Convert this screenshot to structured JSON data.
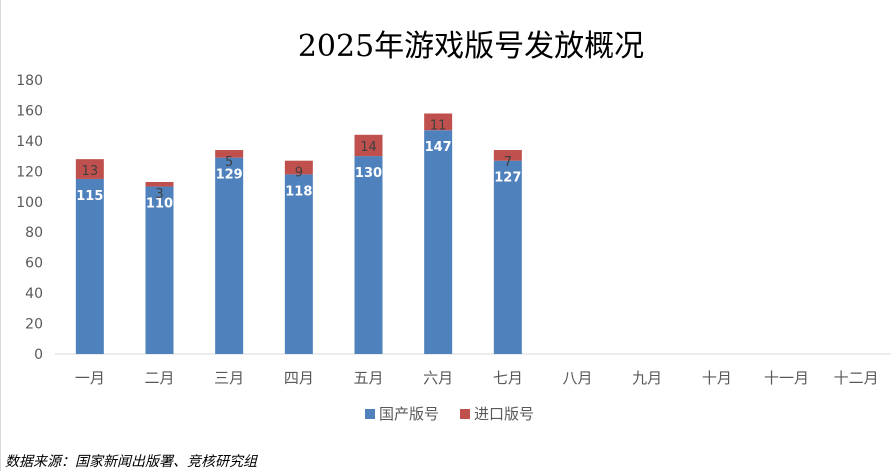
{
  "chart_data": {
    "type": "bar",
    "stacked": true,
    "title": "2025年游戏版号发放概况",
    "categories": [
      "一月",
      "二月",
      "三月",
      "四月",
      "五月",
      "六月",
      "七月",
      "八月",
      "九月",
      "十月",
      "十一月",
      "十二月"
    ],
    "series": [
      {
        "name": "国产版号",
        "color": "#4f81bd",
        "values": [
          115,
          110,
          129,
          118,
          130,
          147,
          127,
          null,
          null,
          null,
          null,
          null
        ]
      },
      {
        "name": "进口版号",
        "color": "#c0504d",
        "values": [
          13,
          3,
          5,
          9,
          14,
          11,
          7,
          null,
          null,
          null,
          null,
          null
        ]
      }
    ],
    "ylim": [
      0,
      180
    ],
    "yticks": [
      0,
      20,
      40,
      60,
      80,
      100,
      120,
      140,
      160,
      180
    ],
    "grid": false,
    "legend_position": "bottom"
  },
  "source": "数据来源：国家新闻出版署、竞核研究组"
}
